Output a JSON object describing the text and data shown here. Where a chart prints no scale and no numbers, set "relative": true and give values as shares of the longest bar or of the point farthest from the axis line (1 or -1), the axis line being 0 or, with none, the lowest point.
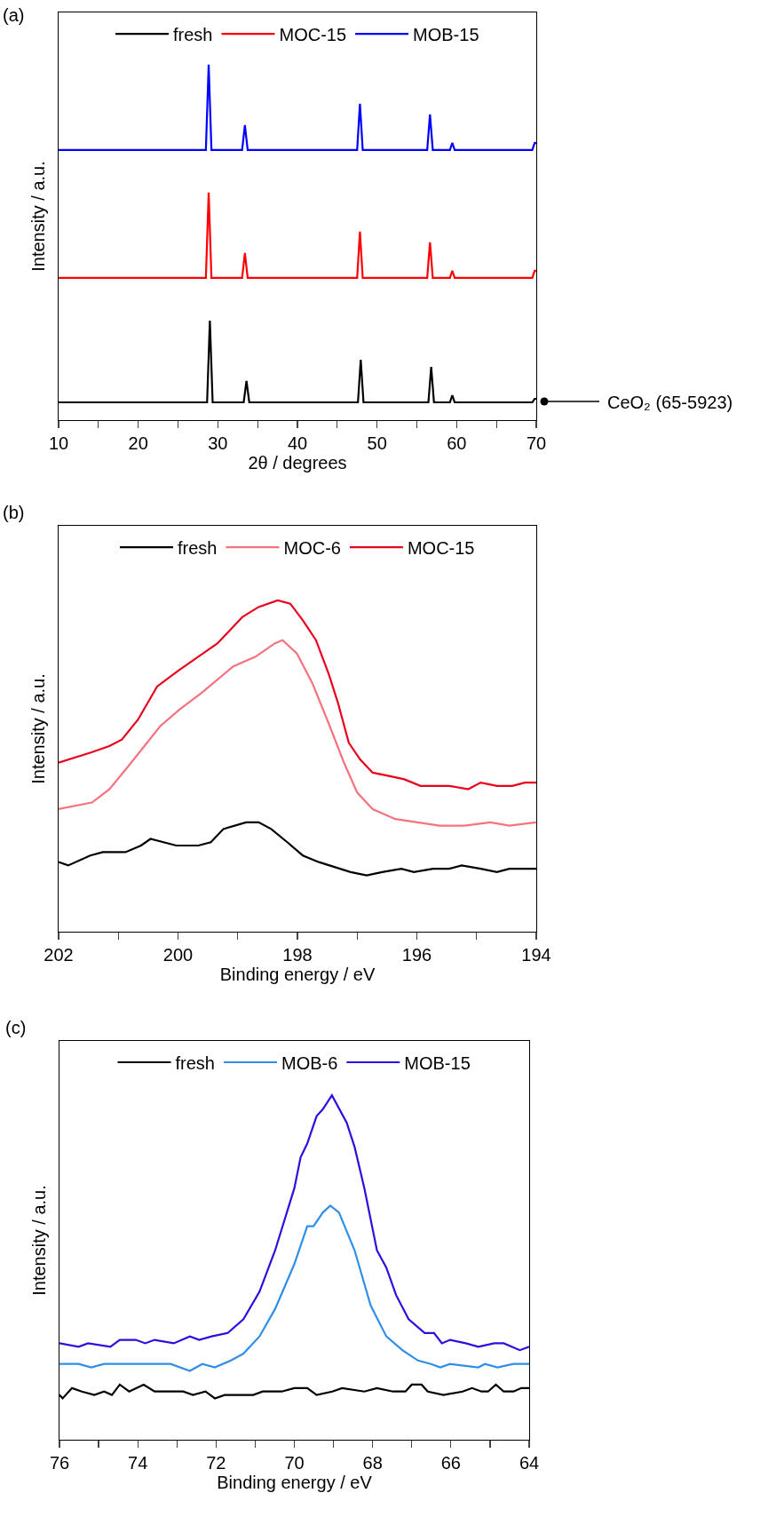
{
  "chart_data": [
    {
      "type": "line",
      "title": "(a)",
      "xlabel": "2θ / degrees",
      "ylabel": "Intensity / a.u.",
      "relative": true,
      "legend": "top",
      "line_style": "solid",
      "xlim": [
        10,
        70
      ],
      "xticks": [
        10,
        {
          "value": 15,
          "label": null
        },
        20,
        {
          "value": 25,
          "label": null
        },
        30,
        {
          "value": 35,
          "label": null
        },
        40,
        {
          "value": 45,
          "label": null
        },
        50,
        {
          "value": 55,
          "label": null
        },
        60,
        {
          "value": 65,
          "label": null
        },
        70
      ],
      "annotations": [
        "CeO₂ (65-5923)"
      ],
      "series": [
        {
          "name": "fresh",
          "color": "#000000",
          "x": [
            10,
            28.65,
            29.0,
            29.35,
            33.25,
            33.6,
            33.95,
            47.6,
            47.95,
            48.3,
            56.45,
            56.8,
            57.15,
            59.15,
            59.45,
            59.75,
            69.5,
            69.8,
            70
          ],
          "values": [
            0.05,
            0.05,
            0.28,
            0.05,
            0.05,
            0.11,
            0.05,
            0.05,
            0.17,
            0.05,
            0.05,
            0.15,
            0.05,
            0.05,
            0.07,
            0.05,
            0.05,
            0.06,
            0.06
          ]
        },
        {
          "name": "MOC-15",
          "color": "#ff0000",
          "x": [
            10,
            28.5,
            28.85,
            29.2,
            33.05,
            33.4,
            33.75,
            47.5,
            47.85,
            48.2,
            56.3,
            56.65,
            57.0,
            59.15,
            59.45,
            59.75,
            69.5,
            69.8,
            70
          ],
          "values": [
            0.4,
            0.4,
            0.64,
            0.4,
            0.4,
            0.47,
            0.4,
            0.4,
            0.53,
            0.4,
            0.4,
            0.5,
            0.4,
            0.4,
            0.42,
            0.4,
            0.4,
            0.42,
            0.42
          ]
        },
        {
          "name": "MOB-15",
          "color": "#0000ff",
          "x": [
            10,
            28.5,
            28.85,
            29.2,
            33.05,
            33.4,
            33.75,
            47.5,
            47.85,
            48.2,
            56.3,
            56.65,
            57.0,
            59.15,
            59.45,
            59.75,
            69.5,
            69.8,
            70
          ],
          "values": [
            0.76,
            0.76,
            1.0,
            0.76,
            0.76,
            0.83,
            0.76,
            0.76,
            0.89,
            0.76,
            0.76,
            0.86,
            0.76,
            0.76,
            0.78,
            0.76,
            0.76,
            0.78,
            0.78
          ]
        }
      ]
    },
    {
      "type": "line",
      "title": "(b)",
      "xlabel": "Binding energy / eV",
      "ylabel": "Intensity / a.u.",
      "relative": true,
      "legend": "top",
      "line_style": "solid",
      "xlim": [
        202,
        194
      ],
      "xticks": [
        202,
        {
          "value": 201,
          "label": null
        },
        200,
        {
          "value": 199,
          "label": null
        },
        198,
        {
          "value": 197,
          "label": null
        },
        196,
        {
          "value": 195,
          "label": null
        },
        194
      ],
      "series": [
        {
          "name": "fresh",
          "color": "#000000",
          "x": [
            202,
            201.84,
            201.47,
            201.26,
            200.88,
            200.62,
            200.46,
            200.03,
            199.66,
            199.45,
            199.24,
            198.86,
            198.65,
            198.44,
            198.17,
            197.91,
            197.64,
            197.11,
            196.84,
            196.58,
            196.26,
            196.05,
            195.73,
            195.46,
            195.25,
            194.93,
            194.66,
            194.45,
            194
          ],
          "values": [
            0.21,
            0.2,
            0.23,
            0.24,
            0.24,
            0.26,
            0.28,
            0.26,
            0.26,
            0.27,
            0.31,
            0.33,
            0.33,
            0.31,
            0.27,
            0.23,
            0.21,
            0.18,
            0.17,
            0.18,
            0.19,
            0.18,
            0.19,
            0.19,
            0.2,
            0.19,
            0.18,
            0.19,
            0.19
          ]
        },
        {
          "name": "MOC-6",
          "color": "#f4737f",
          "x": [
            202,
            201.44,
            201.15,
            200.83,
            200.3,
            199.98,
            199.61,
            199.08,
            198.7,
            198.38,
            198.25,
            198.01,
            197.75,
            197.48,
            197.22,
            197.0,
            196.74,
            196.36,
            195.99,
            195.62,
            195.2,
            194.77,
            194.45,
            194
          ],
          "values": [
            0.37,
            0.39,
            0.43,
            0.5,
            0.62,
            0.67,
            0.72,
            0.8,
            0.83,
            0.87,
            0.88,
            0.84,
            0.75,
            0.63,
            0.51,
            0.42,
            0.37,
            0.34,
            0.33,
            0.32,
            0.32,
            0.33,
            0.32,
            0.33
          ]
        },
        {
          "name": "MOC-15",
          "color": "#e8001c",
          "x": [
            202,
            201.47,
            201.15,
            200.94,
            200.67,
            200.35,
            199.98,
            199.66,
            199.34,
            198.92,
            198.65,
            198.33,
            198.12,
            197.91,
            197.69,
            197.48,
            197.32,
            197.14,
            196.95,
            196.74,
            196.47,
            196.21,
            195.94,
            195.73,
            195.46,
            195.14,
            194.93,
            194.66,
            194.4,
            194.19,
            194
          ],
          "values": [
            0.51,
            0.54,
            0.56,
            0.58,
            0.64,
            0.74,
            0.79,
            0.83,
            0.87,
            0.95,
            0.98,
            1.0,
            0.99,
            0.94,
            0.88,
            0.78,
            0.69,
            0.57,
            0.52,
            0.48,
            0.47,
            0.46,
            0.44,
            0.44,
            0.44,
            0.43,
            0.45,
            0.44,
            0.44,
            0.45,
            0.45
          ]
        }
      ]
    },
    {
      "type": "line",
      "title": "(c)",
      "xlabel": "Binding energy / eV",
      "ylabel": "Intensity / a.u.",
      "relative": true,
      "legend": "top",
      "line_style": "solid",
      "xlim": [
        76,
        64
      ],
      "xticks": [
        76,
        {
          "value": 75,
          "label": null
        },
        74,
        {
          "value": 73,
          "label": null
        },
        72,
        {
          "value": 71,
          "label": null
        },
        70,
        {
          "value": 69,
          "label": null
        },
        68,
        {
          "value": 67,
          "label": null
        },
        66,
        {
          "value": 65,
          "label": null
        },
        64
      ],
      "series": [
        {
          "name": "fresh",
          "color": "#000000",
          "x": [
            76,
            75.92,
            75.68,
            75.43,
            75.11,
            74.86,
            74.66,
            74.46,
            74.22,
            73.85,
            73.57,
            73.24,
            72.84,
            72.59,
            72.27,
            72.03,
            71.78,
            71.05,
            70.81,
            70.32,
            70.0,
            69.67,
            69.43,
            69.03,
            68.78,
            68.21,
            67.89,
            67.48,
            67.16,
            67.0,
            66.75,
            66.59,
            66.19,
            65.7,
            65.46,
            65.22,
            65.05,
            64.85,
            64.65,
            64.4,
            64.2,
            64
          ],
          "values": [
            0.13,
            0.12,
            0.15,
            0.14,
            0.13,
            0.14,
            0.13,
            0.16,
            0.14,
            0.16,
            0.14,
            0.14,
            0.14,
            0.13,
            0.14,
            0.12,
            0.13,
            0.13,
            0.14,
            0.14,
            0.15,
            0.15,
            0.13,
            0.14,
            0.15,
            0.14,
            0.15,
            0.14,
            0.14,
            0.16,
            0.16,
            0.14,
            0.13,
            0.14,
            0.15,
            0.14,
            0.14,
            0.16,
            0.14,
            0.14,
            0.15,
            0.15
          ]
        },
        {
          "name": "MOB-6",
          "color": "#2f8fe8",
          "x": [
            76,
            75.51,
            75.19,
            74.86,
            74.13,
            73.89,
            73.16,
            72.67,
            72.35,
            72.03,
            71.62,
            71.3,
            70.89,
            70.49,
            70.0,
            69.67,
            69.51,
            69.27,
            69.08,
            68.86,
            68.46,
            68.05,
            67.65,
            67.24,
            66.84,
            66.51,
            66.27,
            66.02,
            65.3,
            65.13,
            64.81,
            64.4,
            64
          ],
          "values": [
            0.22,
            0.22,
            0.21,
            0.22,
            0.22,
            0.22,
            0.22,
            0.2,
            0.22,
            0.21,
            0.23,
            0.25,
            0.3,
            0.38,
            0.51,
            0.62,
            0.62,
            0.66,
            0.68,
            0.66,
            0.55,
            0.39,
            0.3,
            0.26,
            0.23,
            0.22,
            0.21,
            0.22,
            0.21,
            0.22,
            0.21,
            0.22,
            0.22
          ]
        },
        {
          "name": "MOB-15",
          "color": "#2a0fe0",
          "x": [
            76,
            75.51,
            75.27,
            74.7,
            74.46,
            74.05,
            73.81,
            73.57,
            73.08,
            72.67,
            72.43,
            72.11,
            71.7,
            71.3,
            70.89,
            70.49,
            70.0,
            69.84,
            69.67,
            69.43,
            69.27,
            69.04,
            68.66,
            68.46,
            68.21,
            67.89,
            67.65,
            67.4,
            67.08,
            66.67,
            66.43,
            66.23,
            66.02,
            65.62,
            65.3,
            64.89,
            64.65,
            64.24,
            64
          ],
          "values": [
            0.28,
            0.27,
            0.28,
            0.27,
            0.29,
            0.29,
            0.28,
            0.29,
            0.28,
            0.3,
            0.29,
            0.3,
            0.31,
            0.35,
            0.43,
            0.55,
            0.73,
            0.82,
            0.86,
            0.94,
            0.96,
            1.0,
            0.92,
            0.85,
            0.73,
            0.55,
            0.5,
            0.42,
            0.35,
            0.31,
            0.31,
            0.28,
            0.29,
            0.28,
            0.27,
            0.28,
            0.28,
            0.26,
            0.27
          ]
        }
      ]
    }
  ]
}
